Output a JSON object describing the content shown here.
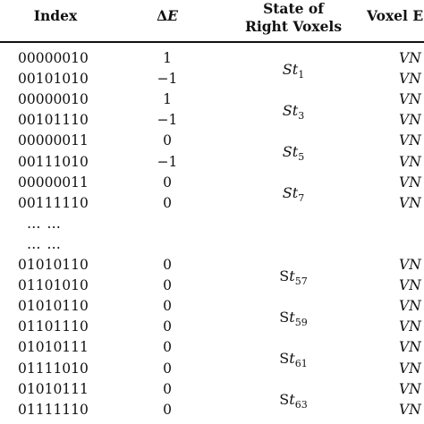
{
  "headers": {
    "index": "Index",
    "delta_symbol": "Δ",
    "delta_var": "E",
    "state_line1": "State of",
    "state_line2": "Right Voxels",
    "voxel": "Voxel E"
  },
  "rows": [
    {
      "index": "00000010",
      "delta": "1",
      "voxel": "VN"
    },
    {
      "index": "00101010",
      "delta": "−1",
      "voxel": "VN"
    },
    {
      "index": "00000010",
      "delta": "1",
      "voxel": "VN"
    },
    {
      "index": "00101110",
      "delta": "−1",
      "voxel": "VN"
    },
    {
      "index": "00000011",
      "delta": "0",
      "voxel": "VN"
    },
    {
      "index": "00111010",
      "delta": "−1",
      "voxel": "VN"
    },
    {
      "index": "00000011",
      "delta": "0",
      "voxel": "VN"
    },
    {
      "index": "00111110",
      "delta": "0",
      "voxel": "VN"
    },
    {
      "ellipsis": "… …"
    },
    {
      "ellipsis": "… …"
    },
    {
      "index": "01010110",
      "delta": "0",
      "voxel": "VN"
    },
    {
      "index": "01101010",
      "delta": "0",
      "voxel": "VN"
    },
    {
      "index": "01010110",
      "delta": "0",
      "voxel": "VN"
    },
    {
      "index": "01101110",
      "delta": "0",
      "voxel": "VN"
    },
    {
      "index": "01010111",
      "delta": "0",
      "voxel": "VN"
    },
    {
      "index": "01111010",
      "delta": "0",
      "voxel": "VN"
    },
    {
      "index": "01010111",
      "delta": "0",
      "voxel": "VN"
    },
    {
      "index": "01111110",
      "delta": "0",
      "voxel": "VN"
    }
  ],
  "states": [
    {
      "prefix": "",
      "italic": "St",
      "sub": "1"
    },
    {
      "prefix": "",
      "italic": "St",
      "sub": "3"
    },
    {
      "prefix": "",
      "italic": "St",
      "sub": "5"
    },
    {
      "prefix": "",
      "italic": "St",
      "sub": "7"
    },
    {
      "prefix": "S",
      "italic": "t",
      "sub": "57"
    },
    {
      "prefix": "S",
      "italic": "t",
      "sub": "59"
    },
    {
      "prefix": "S",
      "italic": "t",
      "sub": "61"
    },
    {
      "prefix": "S",
      "italic": "t",
      "sub": "63"
    }
  ]
}
